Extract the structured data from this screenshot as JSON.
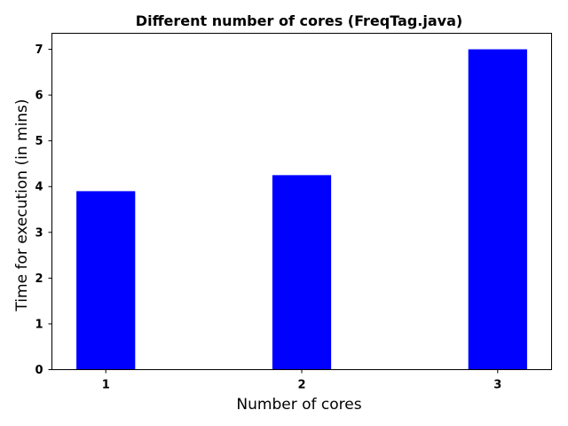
{
  "chart_data": {
    "type": "bar",
    "title": "Different number of cores (FreqTag.java)",
    "xlabel": "Number of cores",
    "ylabel": "Time for execution (in mins)",
    "categories": [
      "1",
      "2",
      "3"
    ],
    "values": [
      3.9,
      4.25,
      7.0
    ],
    "ylim": [
      0,
      7.35
    ],
    "yticks": [
      0,
      1,
      2,
      3,
      4,
      5,
      6,
      7
    ],
    "bar_color": "#0000ff",
    "grid": false,
    "legend": "none"
  }
}
